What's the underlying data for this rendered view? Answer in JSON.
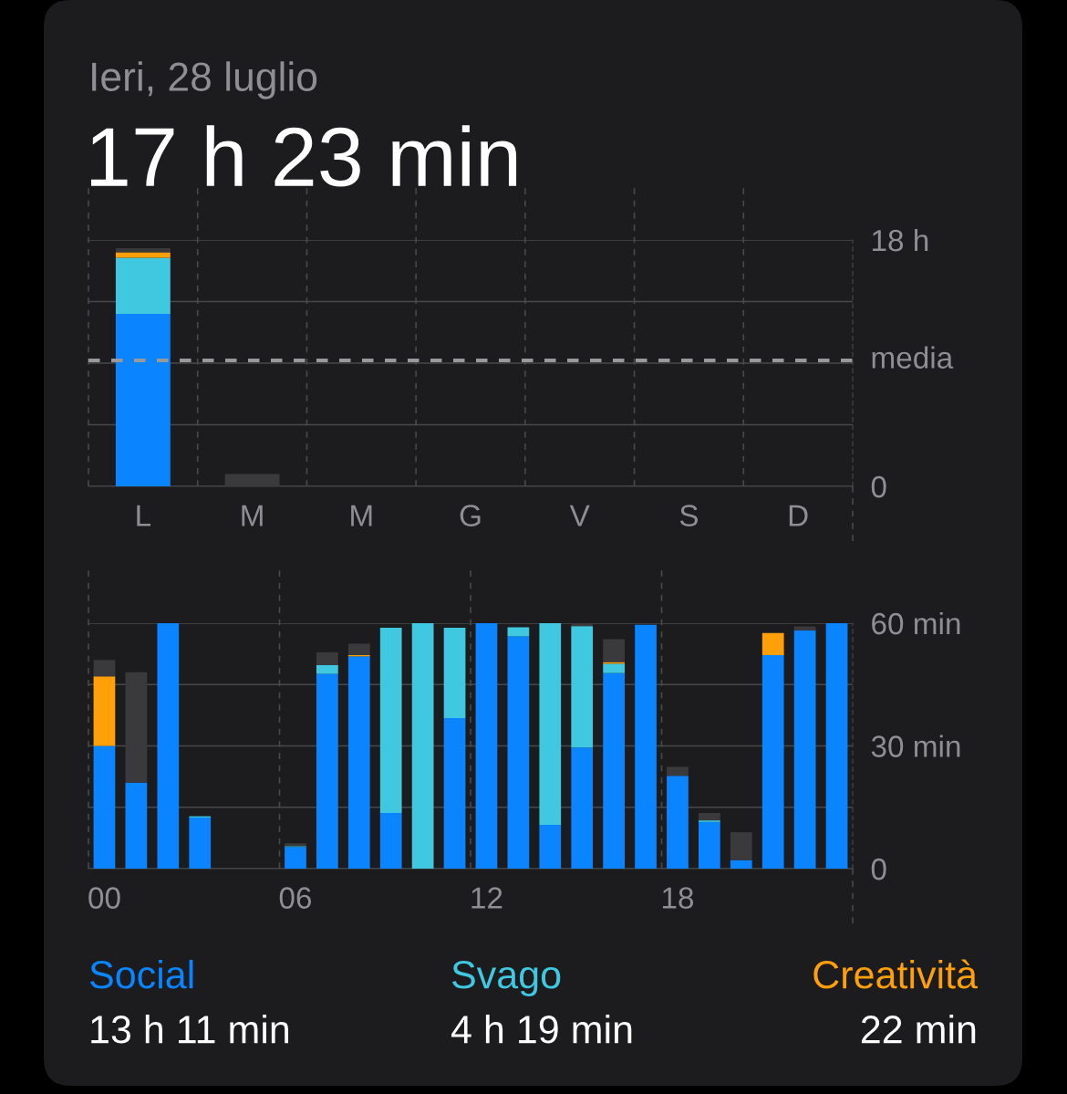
{
  "chart_data": [
    {
      "type": "bar",
      "title": "Ieri, 28 luglio",
      "subtitle": "17 h 23 min",
      "stacked": true,
      "grid": "y",
      "categories": [
        "L",
        "M",
        "M",
        "G",
        "V",
        "S",
        "D"
      ],
      "series": [
        {
          "color": "#0a84ff",
          "values": [
            12.6,
            0,
            0,
            0,
            0,
            0,
            0
          ]
        },
        {
          "color": "#40c8e0",
          "values": [
            4.1,
            0,
            0,
            0,
            0,
            0,
            0
          ]
        },
        {
          "color": "#ff9f0a",
          "values": [
            0.4,
            0,
            0,
            0,
            0,
            0,
            0
          ]
        },
        {
          "color": "#3a3a3c",
          "values": [
            0.3,
            0.9,
            0,
            0,
            0,
            0,
            0
          ]
        }
      ],
      "ylim": [
        0,
        18
      ],
      "yticks": [
        0,
        {
          "value": 4.5,
          "label": null
        },
        {
          "value": 9,
          "label": null
        },
        {
          "value": 13.5,
          "label": null
        },
        {
          "value": 18,
          "label": "18 h"
        }
      ],
      "ref_lines": [
        {
          "axis": "y",
          "value": 9.2,
          "label": "media",
          "color": "#98989d",
          "line_style": "dashed"
        }
      ]
    },
    {
      "type": "bar",
      "stacked": true,
      "grid": "y",
      "legend": "bottom",
      "categories": [
        "00",
        null,
        null,
        null,
        null,
        null,
        "06",
        null,
        null,
        null,
        null,
        null,
        "12",
        null,
        null,
        null,
        null,
        null,
        "18",
        null,
        null,
        null,
        null,
        null
      ],
      "series": [
        {
          "name": "Social",
          "color": "#0a84ff",
          "values": [
            30,
            21,
            60,
            12.5,
            0,
            0,
            5.3,
            47.6,
            51.9,
            13.6,
            0,
            36.8,
            60,
            56.8,
            10.7,
            29.6,
            47.8,
            59.6,
            22.7,
            11.4,
            2.1,
            52.2,
            58.2,
            60
          ]
        },
        {
          "name": "Svago",
          "color": "#40c8e0",
          "values": [
            0,
            0,
            0,
            0.3,
            0,
            0,
            0.2,
            2.2,
            0,
            45.3,
            60,
            22.1,
            0,
            2.2,
            49.3,
            29.7,
            2.3,
            0,
            0,
            0.4,
            0,
            0,
            0,
            0
          ]
        },
        {
          "name": "Creatività",
          "color": "#ff9f0a",
          "values": [
            17,
            0,
            0,
            0,
            0,
            0,
            0,
            0,
            0.3,
            0,
            0,
            0,
            0,
            0,
            0,
            0,
            0.4,
            0,
            0,
            0,
            0,
            5.4,
            0,
            0
          ]
        },
        {
          "color": "#3a3a3c",
          "values": [
            4,
            27,
            0,
            0,
            0,
            0,
            0.7,
            3.1,
            2.8,
            0,
            0,
            0,
            0,
            0,
            0,
            0.7,
            5.6,
            0,
            2.2,
            1.8,
            6.8,
            0,
            1,
            0
          ]
        }
      ],
      "ylim": [
        0,
        60
      ],
      "yticks": [
        0,
        {
          "value": 15,
          "label": null
        },
        {
          "value": 30,
          "label": "30 min"
        },
        {
          "value": 45,
          "label": null
        },
        {
          "value": 60,
          "label": "60 min"
        }
      ],
      "annotations": [
        "13 h 11 min",
        "4 h 19 min",
        "22 min"
      ]
    }
  ]
}
